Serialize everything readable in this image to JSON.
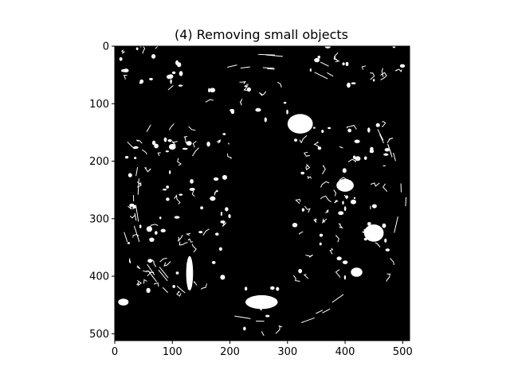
{
  "chart_data": {
    "type": "image",
    "title": "(4) Removing small objects",
    "xlabel": "",
    "ylabel": "",
    "xlim": [
      0,
      512
    ],
    "ylim": [
      512,
      0
    ],
    "xticks": [
      0,
      100,
      200,
      300,
      400,
      500
    ],
    "yticks": [
      0,
      100,
      200,
      300,
      400,
      500
    ],
    "grid": false,
    "image": {
      "description": "binary mask: white edge fragments and blobs on black",
      "background": "#000000",
      "foreground": "#ffffff",
      "regions": [
        {
          "name": "top-right-blob",
          "x": 322,
          "y": 135,
          "rx": 22,
          "ry": 17
        },
        {
          "name": "right-blob-1",
          "x": 400,
          "y": 242,
          "rx": 15,
          "ry": 11
        },
        {
          "name": "right-blob-2",
          "x": 450,
          "y": 325,
          "rx": 17,
          "ry": 15
        },
        {
          "name": "right-blob-3",
          "x": 420,
          "y": 393,
          "rx": 10,
          "ry": 8
        },
        {
          "name": "bottom-center-blob",
          "x": 255,
          "y": 445,
          "rx": 28,
          "ry": 12
        },
        {
          "name": "left-lower-streak",
          "x": 130,
          "y": 395,
          "rx": 6,
          "ry": 30
        },
        {
          "name": "far-left-blob",
          "x": 15,
          "y": 445,
          "rx": 9,
          "ry": 6
        },
        {
          "name": "left-cluster-1",
          "x": 100,
          "y": 175,
          "rx": 6,
          "ry": 5
        },
        {
          "name": "left-cluster-2",
          "x": 60,
          "y": 318,
          "rx": 5,
          "ry": 5
        },
        {
          "name": "left-cluster-3",
          "x": 170,
          "y": 265,
          "rx": 5,
          "ry": 4
        }
      ]
    }
  }
}
